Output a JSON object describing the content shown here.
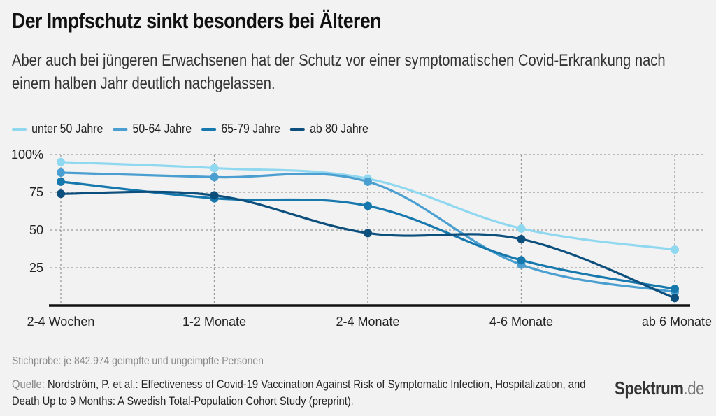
{
  "header": {
    "title": "Der Impfschutz sinkt besonders bei Älteren",
    "subtitle": "Aber auch bei jüngeren Erwachsenen hat der Schutz vor einer symptomatischen Covid-Erkrankung nach einem halben Jahr deutlich nachgelassen."
  },
  "chart_data": {
    "type": "line",
    "title": "Der Impfschutz sinkt besonders bei Älteren",
    "xlabel": "",
    "ylabel": "",
    "categories": [
      "2-4 Wochen",
      "1-2 Monate",
      "2-4 Monate",
      "4-6 Monate",
      "ab 6 Monate"
    ],
    "yticks": [
      {
        "value": 100,
        "label": "100%"
      },
      {
        "value": 75,
        "label": "75"
      },
      {
        "value": 50,
        "label": "50"
      },
      {
        "value": 25,
        "label": "25"
      }
    ],
    "ylim": [
      0,
      100
    ],
    "grid": true,
    "legend_position": "top-left",
    "series": [
      {
        "name": "unter 50 Jahre",
        "color": "#8fd8f0",
        "values": [
          95,
          91,
          84,
          51,
          37
        ]
      },
      {
        "name": "50-64 Jahre",
        "color": "#4a9fd0",
        "values": [
          88,
          85,
          82,
          27,
          9
        ]
      },
      {
        "name": "65-79 Jahre",
        "color": "#1678ad",
        "values": [
          82,
          71,
          66,
          30,
          11
        ]
      },
      {
        "name": "ab 80 Jahre",
        "color": "#0d4f7c",
        "values": [
          74,
          73,
          48,
          44,
          5
        ]
      }
    ]
  },
  "footer": {
    "note": "Stichprobe: je 842.974 geimpfte und ungeimpfte Personen",
    "source_prefix": "Quelle: ",
    "source_link": "Nordström, P. et al.: Effectiveness of Covid-19 Vaccination Against Risk of Symptomatic Infection, Hospitalization, and Death Up to 9 Months: A Swedish Total-Population Cohort Study (preprint)",
    "source_suffix": ".",
    "logo_main": "Spektrum",
    "logo_tld": ".de"
  }
}
